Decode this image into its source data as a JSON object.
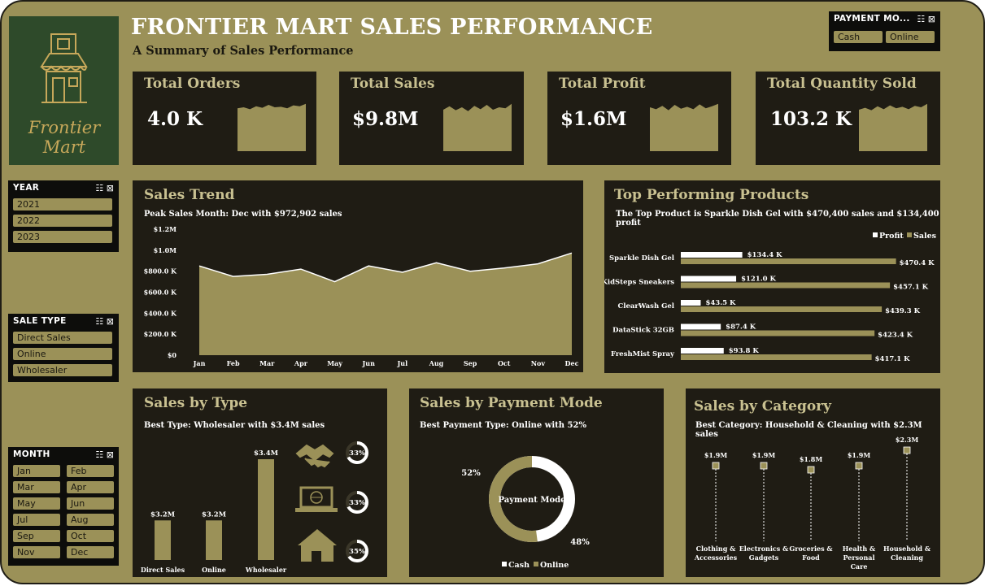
{
  "dashboard": {
    "title": "FRONTIER MART SALES PERFORMANCE",
    "subtitle": "A Summary of Sales Performance",
    "logo_text": "Frontier Mart"
  },
  "colors": {
    "background": "#9b9158",
    "panel": "#1f1c14",
    "accent": "#9b9158",
    "white": "#ffffff",
    "heading": "#c9c191"
  },
  "kpis": [
    {
      "title": "Total Orders",
      "value": "4.0 K"
    },
    {
      "title": "Total Sales",
      "value": "$9.8M"
    },
    {
      "title": "Total Profit",
      "value": "$1.6M"
    },
    {
      "title": "Total Quantity Sold",
      "value": "103.2 K"
    }
  ],
  "slicers": {
    "payment": {
      "title": "PAYMENT MO...",
      "items": [
        "Cash",
        "Online"
      ]
    },
    "year": {
      "title": "YEAR",
      "items": [
        "2021",
        "2022",
        "2023"
      ]
    },
    "sale_type": {
      "title": "SALE TYPE",
      "items": [
        "Direct Sales",
        "Online",
        "Wholesaler"
      ]
    },
    "month": {
      "title": "MONTH",
      "items": [
        "Jan",
        "Feb",
        "Mar",
        "Apr",
        "May",
        "Jun",
        "Jul",
        "Aug",
        "Sep",
        "Oct",
        "Nov",
        "Dec"
      ]
    },
    "icons": [
      "multi-select-icon",
      "clear-filter-icon"
    ]
  },
  "sales_trend": {
    "title": "Sales Trend",
    "subtitle": "Peak Sales Month: Dec with $972,902 sales",
    "y_ticks": [
      "$1.2M",
      "$1.0M",
      "$800.0 K",
      "$600.0 K",
      "$400.0 K",
      "$200.0 K",
      "$0"
    ]
  },
  "top_products": {
    "title": "Top Performing Products",
    "subtitle": "The Top Product is Sparkle Dish Gel with $470,400 sales and $134,400 profit",
    "legend": [
      "Profit",
      "Sales"
    ]
  },
  "sales_by_type": {
    "title": "Sales by Type",
    "subtitle": "Best Type: Wholesaler with $3.4M sales",
    "shares": [
      {
        "icon": "handshake-icon",
        "label": "33%",
        "pct": 33
      },
      {
        "icon": "laptop-globe-icon",
        "label": "33%",
        "pct": 33
      },
      {
        "icon": "house-icon",
        "label": "35%",
        "pct": 35
      }
    ]
  },
  "payment_mode": {
    "title": "Sales by Payment Mode",
    "subtitle": "Best Payment Type: Online with 52%",
    "center_label": "Payment Mode",
    "legend": [
      "Cash",
      "Online"
    ]
  },
  "sales_by_category": {
    "title": "Sales by Category",
    "subtitle": "Best Category: Household & Cleaning with $2.3M sales"
  },
  "chart_data": [
    {
      "type": "area",
      "id": "sales_trend",
      "x": [
        "Jan",
        "Feb",
        "Mar",
        "Apr",
        "May",
        "Jun",
        "Jul",
        "Aug",
        "Sep",
        "Oct",
        "Nov",
        "Dec"
      ],
      "values": [
        850000,
        750000,
        770000,
        820000,
        700000,
        850000,
        790000,
        880000,
        800000,
        830000,
        870000,
        972902
      ],
      "ylim": [
        0,
        1200000
      ]
    },
    {
      "type": "bar",
      "id": "top_products",
      "orientation": "horizontal",
      "categories": [
        "Sparkle Dish Gel",
        "KidSteps Sneakers",
        "ClearWash Gel",
        "DataStick 32GB",
        "FreshMist Spray"
      ],
      "series": [
        {
          "name": "Profit",
          "values": [
            134.4,
            121.0,
            43.5,
            87.4,
            93.8
          ],
          "labels": [
            "$134.4 K",
            "$121.0 K",
            "$43.5 K",
            "$87.4 K",
            "$93.8 K"
          ]
        },
        {
          "name": "Sales",
          "values": [
            470.4,
            457.1,
            439.3,
            423.4,
            417.1
          ],
          "labels": [
            "$470.4 K",
            "$457.1 K",
            "$439.3 K",
            "$423.4 K",
            "$417.1 K"
          ]
        }
      ],
      "xlim": [
        0,
        480
      ]
    },
    {
      "type": "bar",
      "id": "sales_by_type",
      "categories": [
        "Direct Sales",
        "Online",
        "Wholesaler"
      ],
      "values": [
        3.2,
        3.2,
        3.4
      ],
      "labels": [
        "$3.2M",
        "$3.2M",
        "$3.4M"
      ]
    },
    {
      "type": "pie",
      "id": "payment_mode",
      "categories": [
        "Cash",
        "Online"
      ],
      "values": [
        48,
        52
      ],
      "labels": [
        "48%",
        "52%"
      ]
    },
    {
      "type": "scatter",
      "id": "sales_by_category",
      "categories": [
        "Clothing & Accessories",
        "Electronics & Gadgets",
        "Groceries & Food",
        "Health & Personal Care",
        "Household & Cleaning"
      ],
      "category_lines": [
        [
          "Clothing &",
          "Accessories"
        ],
        [
          "Electronics &",
          "Gadgets"
        ],
        [
          "Groceries &",
          "Food"
        ],
        [
          "Health &",
          "Personal",
          "Care"
        ],
        [
          "Household &",
          "Cleaning"
        ]
      ],
      "values": [
        1.9,
        1.9,
        1.8,
        1.9,
        2.3
      ],
      "labels": [
        "$1.9M",
        "$1.9M",
        "$1.8M",
        "$1.9M",
        "$2.3M"
      ]
    },
    {
      "type": "area",
      "id": "kpi_sparklines",
      "series": [
        {
          "name": "Total Orders",
          "values": [
            88,
            90,
            86,
            92,
            89,
            95,
            90,
            91,
            88,
            94,
            92,
            97
          ]
        },
        {
          "name": "Total Sales",
          "values": [
            85,
            92,
            84,
            90,
            82,
            93,
            86,
            95,
            85,
            90,
            88,
            97
          ]
        },
        {
          "name": "Total Profit",
          "values": [
            90,
            86,
            93,
            84,
            95,
            87,
            91,
            86,
            96,
            88,
            92,
            97
          ]
        },
        {
          "name": "Total Quantity Sold",
          "values": [
            85,
            89,
            84,
            92,
            86,
            94,
            88,
            91,
            86,
            93,
            90,
            97
          ]
        }
      ]
    }
  ]
}
